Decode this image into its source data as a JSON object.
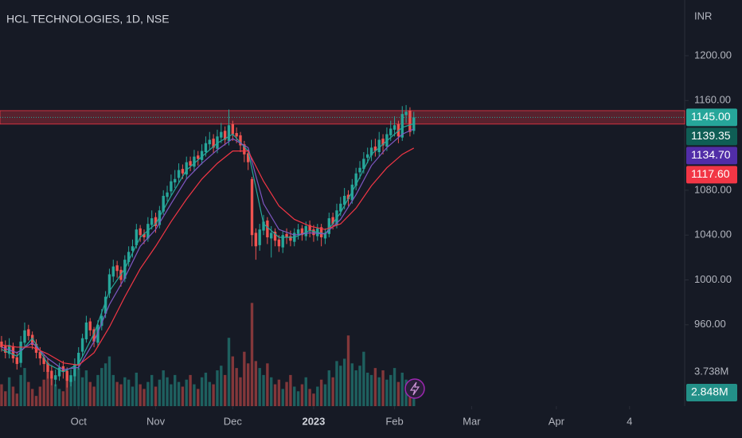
{
  "chart_data": {
    "type": "candlestick",
    "title": "HCL TECHNOLOGIES, 1D, NSE",
    "currency": "INR",
    "xlim": [
      -0.4,
      177.3
    ],
    "xticks": [
      {
        "value": 20,
        "label": "Oct"
      },
      {
        "value": 40,
        "label": "Nov"
      },
      {
        "value": 60,
        "label": "Dec"
      },
      {
        "value": 81,
        "label": "2023"
      },
      {
        "value": 102,
        "label": "Feb"
      },
      {
        "value": 122,
        "label": "Mar"
      },
      {
        "value": 144,
        "label": "Apr"
      },
      {
        "value": 163,
        "label": "4"
      }
    ],
    "ylim": [
      887.4,
      1249.7
    ],
    "yticks": [
      {
        "value": 960,
        "label": "960.00"
      },
      {
        "value": 1000,
        "label": "1000.00"
      },
      {
        "value": 1040,
        "label": "1040.00"
      },
      {
        "value": 1080,
        "label": "1080.00"
      },
      {
        "value": 1160,
        "label": "1160.00"
      },
      {
        "value": 1200,
        "label": "1200.00"
      }
    ],
    "up_color": "#26a69a",
    "down_color": "#ef5350",
    "zone": [
      1139,
      1151
    ],
    "candles": {
      "open": [
        945,
        941,
        934,
        941,
        931,
        926,
        944,
        956,
        951,
        943,
        936,
        931,
        926,
        919,
        911,
        914,
        923,
        919,
        909,
        914,
        924,
        936,
        947,
        963,
        956,
        944,
        959,
        970,
        988,
        1003,
        1013,
        1009,
        1001,
        1016,
        1026,
        1031,
        1046,
        1041,
        1037,
        1049,
        1056,
        1049,
        1061,
        1074,
        1079,
        1087,
        1091,
        1099,
        1094,
        1106,
        1101,
        1111,
        1107,
        1114,
        1121,
        1126,
        1117,
        1127,
        1133,
        1124,
        1139,
        1131,
        1129,
        1121,
        1113,
        1090,
        1042,
        1031,
        1044,
        1053,
        1037,
        1043,
        1036,
        1029,
        1041,
        1039,
        1034,
        1041,
        1046,
        1039,
        1049,
        1045,
        1039,
        1047,
        1037,
        1041,
        1056,
        1049,
        1061,
        1067,
        1076,
        1071,
        1084,
        1096,
        1099,
        1109,
        1111,
        1119,
        1114,
        1126,
        1119,
        1129,
        1134,
        1139,
        1127,
        1147,
        1151,
        1133
      ],
      "high": [
        950,
        946,
        948,
        944,
        936,
        950,
        962,
        960,
        954,
        947,
        940,
        934,
        930,
        924,
        920,
        926,
        928,
        922,
        920,
        930,
        940,
        952,
        968,
        966,
        958,
        964,
        974,
        990,
        1010,
        1018,
        1017,
        1012,
        1022,
        1030,
        1036,
        1050,
        1049,
        1045,
        1056,
        1062,
        1060,
        1066,
        1080,
        1084,
        1094,
        1098,
        1104,
        1103,
        1110,
        1110,
        1116,
        1115,
        1121,
        1128,
        1132,
        1130,
        1134,
        1140,
        1137,
        1152,
        1142,
        1136,
        1132,
        1124,
        1116,
        1092,
        1046,
        1050,
        1058,
        1056,
        1048,
        1046,
        1040,
        1044,
        1046,
        1044,
        1046,
        1050,
        1049,
        1052,
        1053,
        1049,
        1050,
        1050,
        1046,
        1060,
        1060,
        1068,
        1074,
        1082,
        1080,
        1090,
        1100,
        1106,
        1114,
        1118,
        1125,
        1126,
        1132,
        1130,
        1136,
        1142,
        1146,
        1142,
        1155,
        1156,
        1154,
        1150
      ],
      "low": [
        936,
        930,
        930,
        926,
        920,
        922,
        940,
        946,
        938,
        930,
        924,
        918,
        912,
        906,
        905,
        910,
        912,
        904,
        905,
        910,
        920,
        932,
        944,
        950,
        940,
        940,
        955,
        966,
        984,
        998,
        1002,
        994,
        998,
        1012,
        1020,
        1028,
        1034,
        1032,
        1034,
        1045,
        1042,
        1046,
        1058,
        1070,
        1075,
        1082,
        1086,
        1090,
        1090,
        1097,
        1097,
        1102,
        1103,
        1110,
        1116,
        1113,
        1113,
        1122,
        1120,
        1120,
        1124,
        1122,
        1114,
        1105,
        1098,
        1030,
        1018,
        1026,
        1040,
        1032,
        1020,
        1030,
        1025,
        1024,
        1032,
        1030,
        1030,
        1036,
        1035,
        1035,
        1038,
        1034,
        1035,
        1030,
        1032,
        1038,
        1045,
        1046,
        1057,
        1063,
        1066,
        1068,
        1080,
        1090,
        1095,
        1104,
        1106,
        1110,
        1110,
        1112,
        1115,
        1124,
        1128,
        1122,
        1124,
        1140,
        1128,
        1130
      ],
      "close": [
        940,
        935,
        942,
        930,
        925,
        945,
        955,
        950,
        942,
        935,
        930,
        925,
        918,
        912,
        915,
        922,
        918,
        910,
        915,
        925,
        935,
        948,
        962,
        955,
        945,
        960,
        968,
        985,
        1005,
        1012,
        1008,
        1000,
        1018,
        1025,
        1030,
        1045,
        1040,
        1038,
        1050,
        1055,
        1048,
        1062,
        1075,
        1078,
        1088,
        1090,
        1098,
        1095,
        1105,
        1102,
        1110,
        1108,
        1115,
        1122,
        1125,
        1118,
        1128,
        1132,
        1125,
        1138,
        1130,
        1128,
        1120,
        1112,
        1105,
        1040,
        1030,
        1045,
        1052,
        1038,
        1042,
        1035,
        1030,
        1040,
        1038,
        1035,
        1042,
        1045,
        1040,
        1048,
        1044,
        1040,
        1046,
        1038,
        1042,
        1055,
        1050,
        1062,
        1068,
        1075,
        1072,
        1085,
        1095,
        1100,
        1108,
        1112,
        1118,
        1115,
        1125,
        1120,
        1130,
        1135,
        1138,
        1128,
        1148,
        1150,
        1132,
        1145
      ],
      "last_label": "1145.00"
    },
    "moving_averages": [
      {
        "color": "#26a69a",
        "label_bg": "#0f5e55",
        "x": [
          0,
          4,
          8,
          12,
          16,
          20,
          24,
          28,
          32,
          36,
          40,
          44,
          48,
          52,
          56,
          60,
          64,
          68,
          72,
          76,
          80,
          84,
          88,
          92,
          96,
          100,
          104,
          107
        ],
        "values": [
          938,
          932,
          948,
          925,
          918,
          925,
          952,
          990,
          1010,
          1038,
          1050,
          1075,
          1098,
          1110,
          1122,
          1130,
          1115,
          1050,
          1038,
          1038,
          1044,
          1041,
          1060,
          1085,
          1112,
          1124,
          1136,
          1139.35
        ],
        "last_label": "1139.35"
      },
      {
        "color": "#7e57c2",
        "label_bg": "#512da8",
        "x": [
          0,
          4,
          8,
          12,
          16,
          20,
          24,
          28,
          32,
          36,
          40,
          44,
          48,
          52,
          56,
          60,
          64,
          68,
          72,
          76,
          80,
          84,
          88,
          92,
          96,
          100,
          104,
          107
        ],
        "values": [
          940,
          935,
          944,
          930,
          920,
          922,
          945,
          978,
          1002,
          1030,
          1045,
          1068,
          1090,
          1104,
          1116,
          1126,
          1118,
          1068,
          1045,
          1040,
          1042,
          1041,
          1054,
          1076,
          1102,
          1118,
          1130,
          1134.7
        ],
        "last_label": "1134.70"
      },
      {
        "color": "#f23645",
        "label_bg": "#f23645",
        "x": [
          0,
          4,
          8,
          12,
          16,
          20,
          24,
          28,
          32,
          36,
          40,
          44,
          48,
          52,
          56,
          60,
          64,
          68,
          72,
          76,
          80,
          84,
          88,
          92,
          96,
          100,
          104,
          107
        ],
        "values": [
          942,
          940,
          940,
          934,
          926,
          924,
          935,
          958,
          985,
          1010,
          1030,
          1052,
          1072,
          1090,
          1104,
          1115,
          1115,
          1088,
          1066,
          1054,
          1048,
          1045,
          1050,
          1064,
          1084,
          1100,
          1112,
          1117.6
        ],
        "last_label": "1117.60"
      }
    ],
    "volume": {
      "values": [
        3.2,
        2.9,
        3.5,
        3.1,
        2.8,
        3.6,
        3.9,
        3.3,
        3.0,
        2.7,
        3.1,
        3.4,
        3.8,
        3.5,
        3.2,
        3.0,
        2.9,
        3.6,
        3.4,
        3.7,
        3.9,
        3.5,
        3.8,
        3.3,
        3.1,
        3.6,
        3.9,
        4.1,
        4.4,
        3.6,
        3.3,
        3.2,
        3.5,
        3.4,
        3.1,
        3.7,
        3.2,
        3.0,
        3.3,
        3.6,
        3.1,
        3.4,
        3.8,
        3.5,
        3.2,
        3.6,
        3.3,
        3.1,
        3.4,
        3.6,
        3.2,
        3.0,
        3.5,
        3.7,
        3.3,
        3.2,
        3.8,
        4.0,
        3.6,
        5.2,
        4.4,
        3.9,
        3.5,
        4.6,
        4.1,
        6.7,
        4.2,
        3.9,
        3.6,
        4.1,
        3.5,
        3.2,
        3.4,
        3.0,
        3.3,
        3.6,
        3.1,
        2.9,
        3.2,
        3.5,
        3.0,
        2.8,
        3.1,
        3.4,
        3.2,
        3.8,
        3.5,
        4.2,
        4.0,
        4.3,
        5.3,
        4.1,
        3.8,
        4.0,
        4.6,
        3.7,
        3.6,
        3.9,
        3.5,
        3.8,
        3.4,
        3.6,
        3.9,
        3.3,
        3.7,
        3.4,
        3.2,
        2.848
      ],
      "last_label": "2.848M"
    },
    "y2lim": [
      2.26,
      19.73
    ],
    "y2ticks": [
      {
        "value": 3.738,
        "label": "3.738M"
      }
    ]
  }
}
